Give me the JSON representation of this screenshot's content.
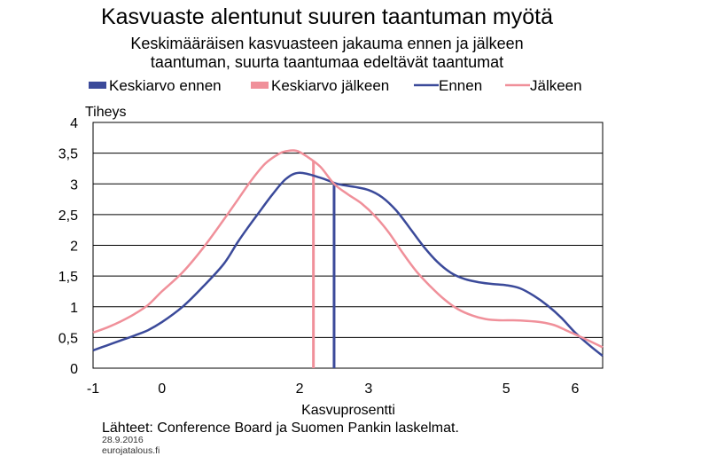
{
  "chart_data": {
    "type": "line",
    "title": "Kasvuaste alentunut suuren taantuman myötä",
    "subtitle_lines": [
      "Keskimääräisen kasvuasteen jakauma ennen ja jälkeen",
      "taantuman, suurta taantumaa edeltävät taantumat"
    ],
    "ylabel": "Tiheys",
    "xlabel": "Kasvuprosentti",
    "xlim": [
      -1,
      6.4
    ],
    "ylim": [
      0,
      4
    ],
    "xticks": [
      -1,
      0,
      2,
      3,
      5,
      6
    ],
    "yticks": [
      "0",
      "0,5",
      "1",
      "1,5",
      "2",
      "2,5",
      "3",
      "3,5",
      "4"
    ],
    "grid": "horizontal",
    "legend": {
      "position": "top",
      "entries": [
        {
          "label": "Keskiarvo ennen",
          "color": "#3b4a9a",
          "kind": "bar"
        },
        {
          "label": "Keskiarvo jälkeen",
          "color": "#f0909a",
          "kind": "bar"
        },
        {
          "label": "Ennen",
          "color": "#3b4a9a",
          "kind": "line"
        },
        {
          "label": "Jälkeen",
          "color": "#f0909a",
          "kind": "line"
        }
      ]
    },
    "series": [
      {
        "name": "Ennen",
        "color": "#3b4a9a",
        "x": [
          -1.0,
          -0.8,
          -0.6,
          -0.4,
          -0.2,
          0.0,
          0.3,
          0.6,
          0.9,
          1.1,
          1.25,
          1.4,
          1.6,
          1.8,
          2.0,
          2.3,
          2.55,
          2.8,
          3.0,
          3.2,
          3.4,
          3.6,
          3.8,
          4.0,
          4.2,
          4.4,
          4.6,
          4.8,
          5.0,
          5.2,
          5.4,
          5.6,
          5.8,
          6.0,
          6.2,
          6.4
        ],
        "y": [
          0.29,
          0.37,
          0.45,
          0.53,
          0.62,
          0.75,
          1.0,
          1.33,
          1.7,
          2.05,
          2.29,
          2.52,
          2.82,
          3.08,
          3.18,
          3.1,
          3.0,
          2.95,
          2.9,
          2.78,
          2.57,
          2.28,
          1.98,
          1.73,
          1.55,
          1.45,
          1.4,
          1.37,
          1.35,
          1.3,
          1.18,
          1.02,
          0.82,
          0.58,
          0.38,
          0.2
        ]
      },
      {
        "name": "Jälkeen",
        "color": "#f0909a",
        "x": [
          -1.0,
          -0.8,
          -0.6,
          -0.4,
          -0.2,
          0.0,
          0.3,
          0.6,
          0.9,
          1.1,
          1.3,
          1.5,
          1.7,
          1.8,
          1.95,
          2.1,
          2.3,
          2.5,
          2.7,
          2.9,
          3.1,
          3.3,
          3.5,
          3.7,
          3.9,
          4.1,
          4.3,
          4.5,
          4.7,
          4.9,
          5.1,
          5.3,
          5.5,
          5.7,
          5.9,
          6.1,
          6.4
        ],
        "y": [
          0.58,
          0.66,
          0.76,
          0.88,
          1.03,
          1.25,
          1.56,
          1.96,
          2.42,
          2.74,
          3.06,
          3.33,
          3.49,
          3.53,
          3.54,
          3.45,
          3.28,
          3.0,
          2.83,
          2.68,
          2.47,
          2.2,
          1.87,
          1.57,
          1.33,
          1.12,
          0.96,
          0.86,
          0.8,
          0.78,
          0.78,
          0.77,
          0.75,
          0.7,
          0.6,
          0.5,
          0.34
        ]
      }
    ],
    "markers": [
      {
        "name": "Keskiarvo ennen",
        "color": "#3b4a9a",
        "x": 2.5,
        "y_top": 3.0
      },
      {
        "name": "Keskiarvo jälkeen",
        "color": "#f0909a",
        "x": 2.2,
        "y_top": 3.38
      }
    ]
  },
  "footer": {
    "source": "Lähteet: Conference Board ja Suomen Pankin laskelmat.",
    "date": "28.9.2016",
    "site": "eurojatalous.fi"
  }
}
